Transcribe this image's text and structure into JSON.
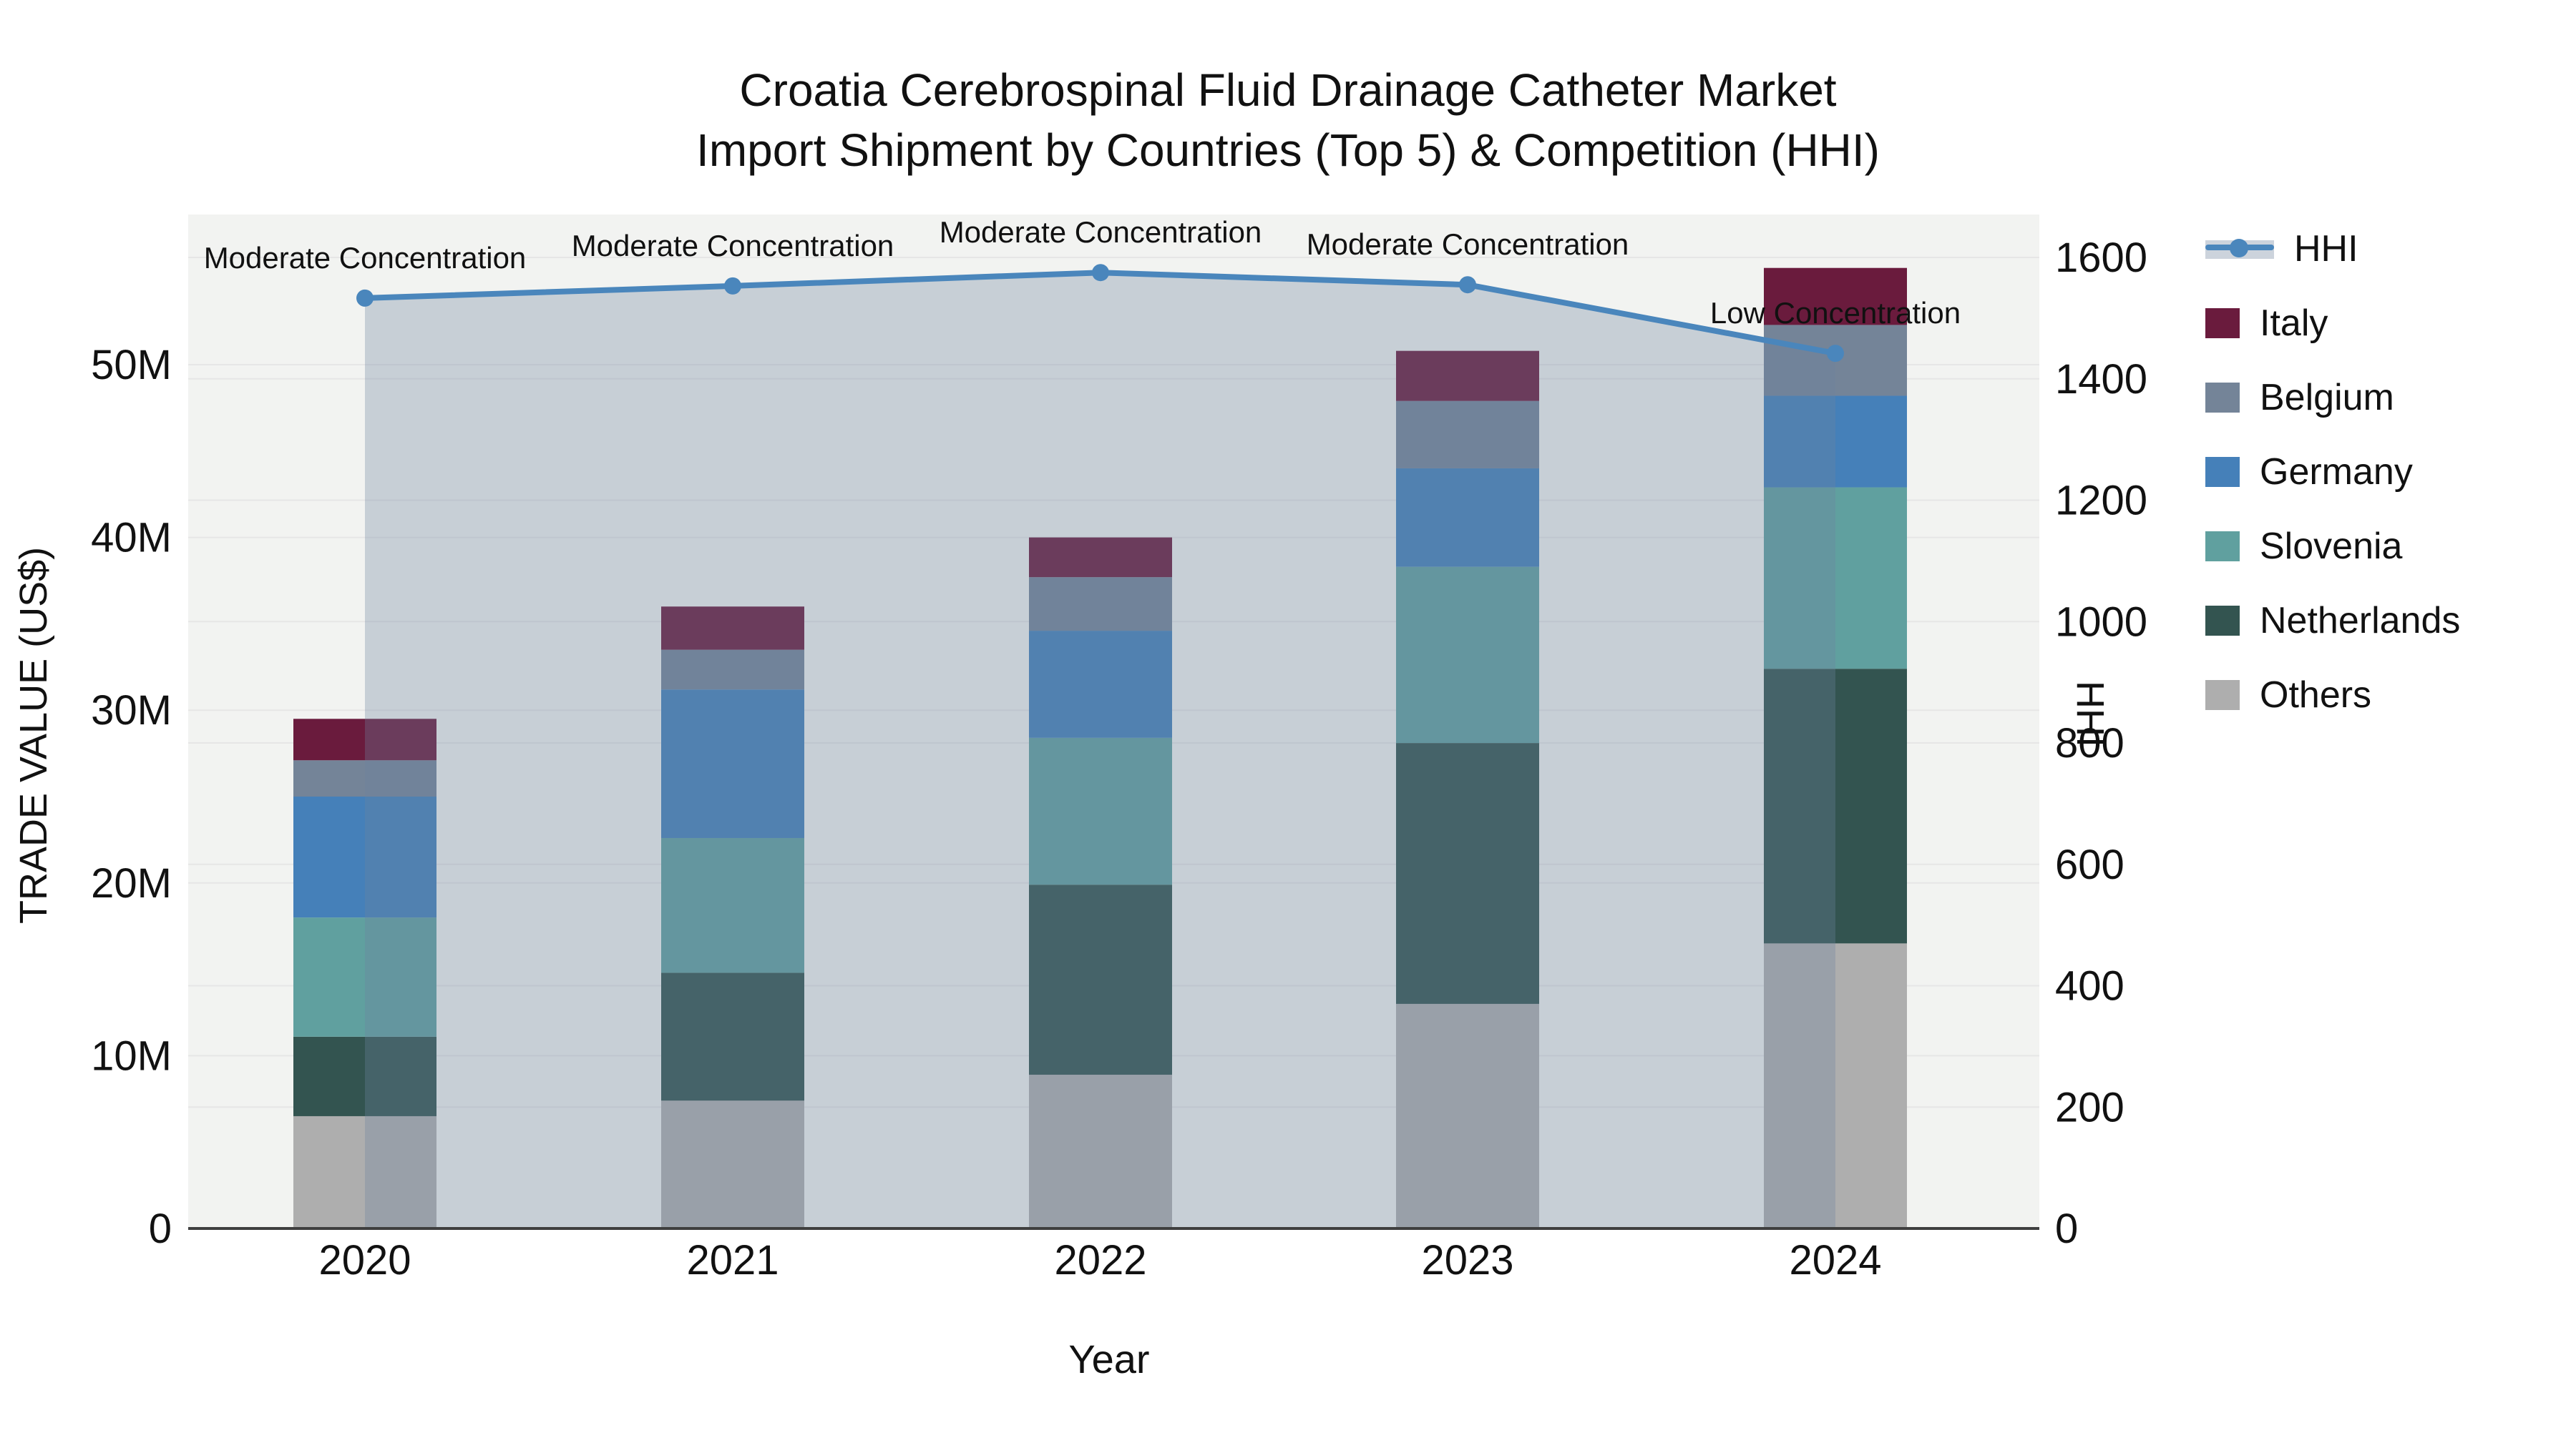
{
  "title": {
    "line1": "Croatia Cerebrospinal Fluid Drainage Catheter Market",
    "line2": "Import Shipment by Countries (Top 5) & Competition (HHI)"
  },
  "axes": {
    "left": {
      "title": "TRADE VALUE (US$)",
      "tick_labels": [
        "0",
        "10M",
        "20M",
        "30M",
        "40M",
        "50M"
      ]
    },
    "right": {
      "title": "HHI",
      "tick_labels": [
        "0",
        "200",
        "400",
        "600",
        "800",
        "1000",
        "1200",
        "1400",
        "1600"
      ]
    },
    "x": {
      "title": "Year",
      "tick_labels": [
        "2020",
        "2021",
        "2022",
        "2023",
        "2024"
      ]
    }
  },
  "legend": {
    "items": [
      {
        "label": "HHI",
        "kind": "line",
        "color": "#4a86bc"
      },
      {
        "label": "Italy",
        "kind": "swatch",
        "color": "#6a1b3d"
      },
      {
        "label": "Belgium",
        "kind": "swatch",
        "color": "#748498"
      },
      {
        "label": "Germany",
        "kind": "swatch",
        "color": "#4580b9"
      },
      {
        "label": "Slovenia",
        "kind": "swatch",
        "color": "#60a09f"
      },
      {
        "label": "Netherlands",
        "kind": "swatch",
        "color": "#335450"
      },
      {
        "label": "Others",
        "kind": "swatch",
        "color": "#aeaeae"
      }
    ]
  },
  "colors": {
    "plot_background": "#f2f3f1",
    "grid_line": "#e6e6e6",
    "axis_line": "#3f3f3f",
    "hhi_line": "#4a86bc",
    "area_fill": "rgba(108,130,160,0.32)",
    "text": "#111111"
  },
  "chart_data": {
    "type": "combo_stacked_bar_line",
    "categories": [
      "2020",
      "2021",
      "2022",
      "2023",
      "2024"
    ],
    "series": [
      {
        "name": "Others",
        "type": "bar",
        "color": "#aeaeae",
        "values": [
          6.5,
          7.4,
          8.9,
          13.0,
          16.5
        ]
      },
      {
        "name": "Netherlands",
        "type": "bar",
        "color": "#335450",
        "values": [
          4.6,
          7.4,
          11.0,
          15.1,
          15.9
        ]
      },
      {
        "name": "Slovenia",
        "type": "bar",
        "color": "#60a09f",
        "values": [
          6.9,
          7.8,
          8.5,
          10.2,
          10.5
        ]
      },
      {
        "name": "Germany",
        "type": "bar",
        "color": "#4580b9",
        "values": [
          7.0,
          8.6,
          6.2,
          5.7,
          5.3
        ]
      },
      {
        "name": "Belgium",
        "type": "bar",
        "color": "#748498",
        "values": [
          2.1,
          2.3,
          3.1,
          3.9,
          4.1
        ]
      },
      {
        "name": "Italy",
        "type": "bar",
        "color": "#6a1b3d",
        "values": [
          2.4,
          2.5,
          2.3,
          2.9,
          3.3
        ]
      }
    ],
    "bar_totals_millions": [
      29.5,
      36.0,
      40.0,
      50.8,
      55.6
    ],
    "line": {
      "name": "HHI",
      "color": "#4a86bc",
      "values": [
        1533,
        1553,
        1575,
        1555,
        1442
      ],
      "area_under_line": true,
      "area_fill": "rgba(108,130,160,0.32)"
    },
    "annotations": [
      {
        "year": "2020",
        "text": "Moderate Concentration"
      },
      {
        "year": "2021",
        "text": "Moderate Concentration"
      },
      {
        "year": "2022",
        "text": "Moderate Concentration"
      },
      {
        "year": "2023",
        "text": "Moderate Concentration"
      },
      {
        "year": "2024",
        "text": "Low Concentration"
      }
    ],
    "title": "Croatia Cerebrospinal Fluid Drainage Catheter Market Import Shipment by Countries (Top 5) & Competition (HHI)",
    "xlabel": "Year",
    "ylabel_left": "TRADE VALUE (US$)",
    "ylabel_right": "HHI",
    "y_left": {
      "unit": "millions US$",
      "ticks": [
        0,
        10,
        20,
        30,
        40,
        50
      ],
      "range": [
        0,
        58.7
      ]
    },
    "y_right": {
      "ticks": [
        0,
        200,
        400,
        600,
        800,
        1000,
        1200,
        1400,
        1600
      ],
      "range": [
        0,
        1672
      ]
    },
    "grid": true,
    "legend_position": "right"
  }
}
